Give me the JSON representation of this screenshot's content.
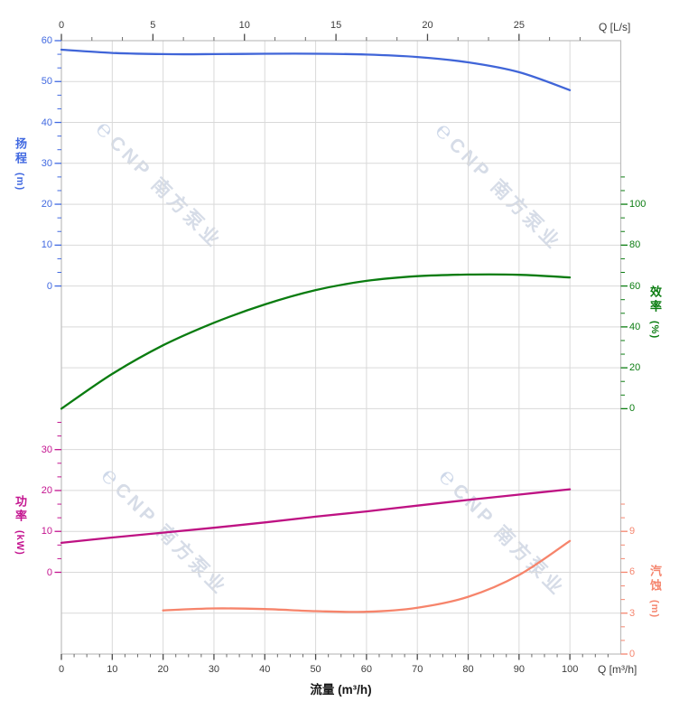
{
  "watermark": {
    "logo_glyph": "℮",
    "text": "CNP 南方泵业"
  },
  "axes": {
    "top": {
      "unit_label": "Q [L/s]",
      "major_ticks": [
        0,
        5,
        10,
        15,
        20,
        25
      ]
    },
    "bottom": {
      "unit_label": "Q [m³/h]",
      "title": "流量 (m³/h)",
      "major_ticks": [
        0,
        10,
        20,
        30,
        40,
        50,
        60,
        70,
        80,
        90,
        100
      ]
    },
    "head": {
      "name_cn": "扬程",
      "unit": "(m)",
      "color": "#4169e1",
      "curve_color": "#4065d8",
      "major_ticks": [
        0,
        10,
        20,
        30,
        40,
        50,
        60
      ]
    },
    "efficiency": {
      "name_cn": "效率",
      "unit": "(%)",
      "color": "#0c7d12",
      "curve_color": "#0a7c10",
      "major_ticks": [
        0,
        20,
        40,
        60,
        80,
        100
      ]
    },
    "power": {
      "name_cn": "功率",
      "unit": "(kW)",
      "color": "#c41590",
      "curve_color": "#be1283",
      "major_ticks": [
        0,
        10,
        20,
        30
      ]
    },
    "npsh": {
      "name_cn": "汽蚀",
      "unit": "(m)",
      "color": "#f5866f",
      "curve_color": "#f6846b",
      "major_ticks": [
        0,
        3,
        6,
        9
      ]
    }
  },
  "chart_data": {
    "type": "line",
    "title": "",
    "xlabel": "流量 (m³/h)",
    "x_secondary_label": "Q [L/s]",
    "x_range_m3h": [
      0,
      110
    ],
    "grid": true,
    "series": [
      {
        "name": "head",
        "label": "扬程 (m)",
        "axis_range": [
          0,
          60
        ],
        "x": [
          0,
          10,
          20,
          30,
          40,
          50,
          60,
          70,
          80,
          90,
          100
        ],
        "y": [
          57.8,
          57.0,
          56.7,
          56.7,
          56.8,
          56.8,
          56.6,
          56.0,
          54.7,
          52.3,
          47.9
        ]
      },
      {
        "name": "efficiency",
        "label": "效率 (%)",
        "axis_range": [
          0,
          100
        ],
        "x": [
          0,
          10,
          20,
          30,
          40,
          50,
          60,
          70,
          80,
          90,
          100
        ],
        "y": [
          0,
          17,
          31,
          42,
          51,
          58,
          62.5,
          64.8,
          65.6,
          65.5,
          64.2
        ]
      },
      {
        "name": "power",
        "label": "功率 (kW)",
        "axis_range": [
          0,
          30
        ],
        "x": [
          0,
          10,
          20,
          30,
          40,
          50,
          60,
          70,
          80,
          90,
          100
        ],
        "y": [
          7.2,
          8.5,
          9.7,
          10.9,
          12.2,
          13.6,
          14.9,
          16.3,
          17.7,
          19.0,
          20.3
        ]
      },
      {
        "name": "npsh",
        "label": "汽蚀 (m)",
        "axis_range": [
          0,
          9
        ],
        "x": [
          20,
          30,
          40,
          50,
          60,
          70,
          80,
          90,
          100
        ],
        "y": [
          3.2,
          3.35,
          3.3,
          3.15,
          3.1,
          3.4,
          4.2,
          5.8,
          8.3
        ]
      }
    ]
  }
}
